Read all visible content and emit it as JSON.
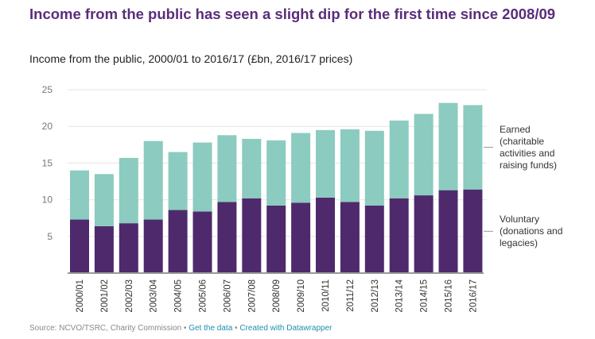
{
  "title": "Income from the public has seen a slight dip for the first time since 2008/09",
  "subtitle": "Income from the public, 2000/01 to 2016/17 (£bn, 2016/17 prices)",
  "footer": {
    "source": "Source: NCVO/TSRC, Charity Commission",
    "sep": " • ",
    "get_data": "Get the data",
    "created": "Created with Datawrapper"
  },
  "colors": {
    "voluntary": "#4e2a6c",
    "earned": "#8ccbbf",
    "title": "#5a2d7a"
  },
  "chart_data": {
    "type": "bar",
    "stacked": true,
    "title": "Income from the public, 2000/01 to 2016/17 (£bn, 2016/17 prices)",
    "categories": [
      "2000/01",
      "2001/02",
      "2002/03",
      "2003/04",
      "2004/05",
      "2005/06",
      "2006/07",
      "2007/08",
      "2008/09",
      "2009/10",
      "2010/11",
      "2011/12",
      "2012/13",
      "2013/14",
      "2014/15",
      "2015/16",
      "2016/17"
    ],
    "series": [
      {
        "name": "Voluntary (donations and legacies)",
        "label_lines": [
          "Voluntary",
          "(donations and",
          "legacies)"
        ],
        "values": [
          7.3,
          6.4,
          6.8,
          7.3,
          8.6,
          8.4,
          9.7,
          10.2,
          9.2,
          9.6,
          10.3,
          9.7,
          9.2,
          10.2,
          10.6,
          11.3,
          11.4
        ]
      },
      {
        "name": "Earned (charitable activities and raising funds)",
        "label_lines": [
          "Earned",
          "(charitable",
          "activities and",
          "raising funds)"
        ],
        "values": [
          6.7,
          7.1,
          8.9,
          10.7,
          7.9,
          9.4,
          9.1,
          8.1,
          8.9,
          9.5,
          9.2,
          9.9,
          10.2,
          10.6,
          11.1,
          11.9,
          11.5
        ]
      }
    ],
    "yticks": [
      5,
      10,
      15,
      20,
      25
    ],
    "ylim": [
      0,
      25
    ],
    "grid": true,
    "legend": "right, direct labels"
  }
}
